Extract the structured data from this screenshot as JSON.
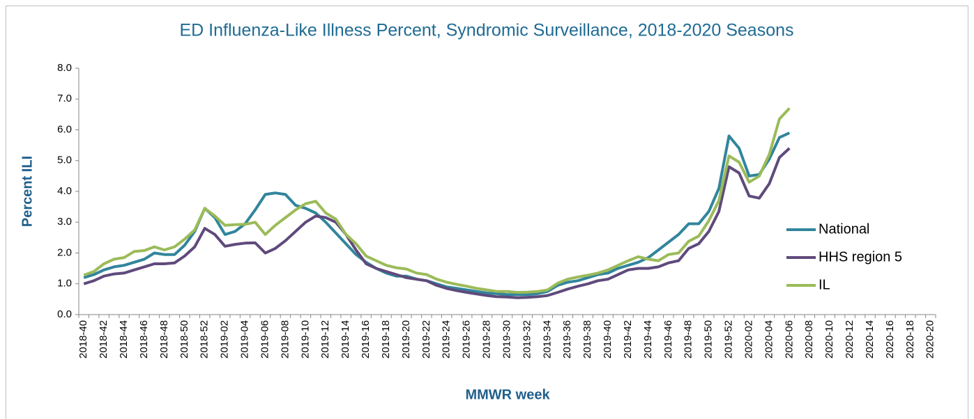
{
  "chart_data": {
    "type": "line",
    "title": "ED Influenza-Like Illness Percent, Syndromic Surveillance, 2018-2020 Seasons",
    "x_label": "MMWR week",
    "y_label": "Percent ILI",
    "categories": [
      "2018-40",
      null,
      "2018-42",
      null,
      "2018-44",
      null,
      "2018-46",
      null,
      "2018-48",
      null,
      "2018-50",
      null,
      "2018-52",
      null,
      "2019-02",
      null,
      "2019-04",
      null,
      "2019-06",
      null,
      "2019-08",
      null,
      "2019-10",
      null,
      "2019-12",
      null,
      "2019-14",
      null,
      "2019-16",
      null,
      "2019-18",
      null,
      "2019-20",
      null,
      "2019-22",
      null,
      "2019-24",
      null,
      "2019-26",
      null,
      "2019-28",
      null,
      "2019-30",
      null,
      "2019-32",
      null,
      "2019-34",
      null,
      "2019-36",
      null,
      "2019-38",
      null,
      "2019-40",
      null,
      "2019-42",
      null,
      "2019-44",
      null,
      "2019-46",
      null,
      "2019-48",
      null,
      "2019-50",
      null,
      "2019-52",
      null,
      "2020-02",
      null,
      "2020-04",
      null,
      "2020-06",
      null,
      "2020-08",
      null,
      "2020-10",
      null,
      "2020-12",
      null,
      "2020-14",
      null,
      "2020-16",
      null,
      "2020-18",
      null,
      "2020-20"
    ],
    "series": [
      {
        "name": "National",
        "color": "#31859c",
        "values": [
          1.2,
          1.3,
          1.45,
          1.55,
          1.6,
          1.7,
          1.8,
          2.0,
          1.95,
          1.95,
          2.25,
          2.7,
          3.45,
          3.15,
          2.6,
          2.7,
          2.95,
          3.4,
          3.9,
          3.95,
          3.9,
          3.55,
          3.45,
          3.3,
          3.0,
          2.65,
          2.3,
          1.95,
          1.7,
          1.5,
          1.35,
          1.25,
          1.25,
          1.15,
          1.1,
          1.0,
          0.9,
          0.85,
          0.8,
          0.75,
          0.7,
          0.68,
          0.65,
          0.65,
          0.65,
          0.68,
          0.75,
          0.95,
          1.05,
          1.1,
          1.2,
          1.3,
          1.35,
          1.5,
          1.6,
          1.7,
          1.85,
          2.1,
          2.35,
          2.6,
          2.95,
          2.95,
          3.35,
          4.1,
          5.8,
          5.4,
          4.5,
          4.55,
          5.05,
          5.75,
          5.9,
          null,
          null,
          null,
          null,
          null,
          null,
          null,
          null,
          null,
          null,
          null,
          null,
          null,
          null
        ]
      },
      {
        "name": "HHS region 5",
        "color": "#5f4a7c",
        "values": [
          1.0,
          1.1,
          1.25,
          1.32,
          1.35,
          1.45,
          1.55,
          1.65,
          1.65,
          1.68,
          1.9,
          2.2,
          2.8,
          2.6,
          2.22,
          2.28,
          2.32,
          2.33,
          2.0,
          2.15,
          2.4,
          2.7,
          3.0,
          3.2,
          3.15,
          3.0,
          2.6,
          2.1,
          1.65,
          1.5,
          1.4,
          1.3,
          1.2,
          1.15,
          1.1,
          0.95,
          0.85,
          0.78,
          0.72,
          0.67,
          0.62,
          0.58,
          0.57,
          0.55,
          0.56,
          0.58,
          0.62,
          0.72,
          0.83,
          0.92,
          1.0,
          1.1,
          1.15,
          1.3,
          1.45,
          1.5,
          1.5,
          1.55,
          1.68,
          1.75,
          2.15,
          2.3,
          2.7,
          3.35,
          4.8,
          4.6,
          3.85,
          3.78,
          4.25,
          5.1,
          5.4,
          null,
          null,
          null,
          null,
          null,
          null,
          null,
          null,
          null,
          null,
          null,
          null,
          null,
          null
        ]
      },
      {
        "name": "IL",
        "color": "#9bbb59",
        "values": [
          1.28,
          1.4,
          1.65,
          1.8,
          1.85,
          2.05,
          2.08,
          2.2,
          2.1,
          2.2,
          2.45,
          2.75,
          3.45,
          3.2,
          2.9,
          2.92,
          2.93,
          3.0,
          2.6,
          2.9,
          3.15,
          3.4,
          3.6,
          3.68,
          3.3,
          3.1,
          2.6,
          2.3,
          1.9,
          1.75,
          1.6,
          1.52,
          1.48,
          1.35,
          1.3,
          1.15,
          1.05,
          0.98,
          0.92,
          0.85,
          0.8,
          0.75,
          0.75,
          0.72,
          0.73,
          0.75,
          0.8,
          1.02,
          1.15,
          1.22,
          1.28,
          1.35,
          1.45,
          1.6,
          1.75,
          1.88,
          1.8,
          1.75,
          1.95,
          2.0,
          2.38,
          2.55,
          3.05,
          3.7,
          5.15,
          4.95,
          4.3,
          4.5,
          5.2,
          6.35,
          6.7,
          null,
          null,
          null,
          null,
          null,
          null,
          null,
          null,
          null,
          null,
          null,
          null,
          null,
          null
        ]
      }
    ],
    "ylim": [
      0,
      8
    ],
    "yticks": [
      {
        "value": 0,
        "label": "0.0"
      },
      {
        "value": 1,
        "label": "1.0"
      },
      {
        "value": 2,
        "label": "2.0"
      },
      {
        "value": 3,
        "label": "3.0"
      },
      {
        "value": 4,
        "label": "4.0"
      },
      {
        "value": 5,
        "label": "5.0"
      },
      {
        "value": 6,
        "label": "6.0"
      },
      {
        "value": 7,
        "label": "7.0"
      },
      {
        "value": 8,
        "label": "8.0"
      }
    ],
    "grid": false,
    "legend": "right"
  }
}
